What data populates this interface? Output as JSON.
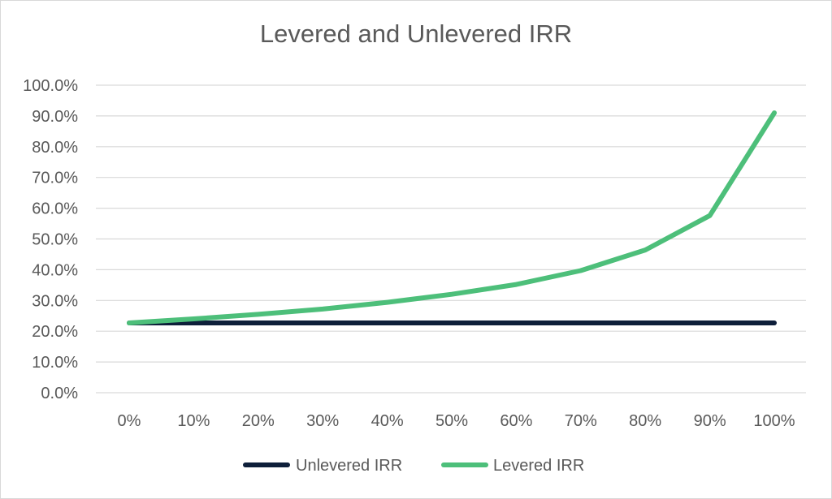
{
  "chart_data": {
    "type": "line",
    "title": "Levered and Unlevered IRR",
    "xlabel": "",
    "ylabel": "",
    "categories": [
      "0%",
      "10%",
      "20%",
      "30%",
      "40%",
      "50%",
      "60%",
      "70%",
      "80%",
      "90%",
      "100%"
    ],
    "y_ticks": [
      "0.0%",
      "10.0%",
      "20.0%",
      "30.0%",
      "40.0%",
      "50.0%",
      "60.0%",
      "70.0%",
      "80.0%",
      "90.0%",
      "100.0%"
    ],
    "ylim": [
      0,
      100
    ],
    "grid": true,
    "legend_position": "bottom",
    "series": [
      {
        "name": "Unlevered IRR",
        "color": "#0e1f3a",
        "values": [
          22.7,
          22.7,
          22.7,
          22.7,
          22.7,
          22.7,
          22.7,
          22.7,
          22.7,
          22.7,
          22.7
        ]
      },
      {
        "name": "Levered IRR",
        "color": "#4dbf7a",
        "values": [
          22.7,
          24.0,
          25.5,
          27.2,
          29.4,
          32.0,
          35.2,
          39.7,
          46.4,
          57.6,
          91.0
        ]
      }
    ]
  }
}
